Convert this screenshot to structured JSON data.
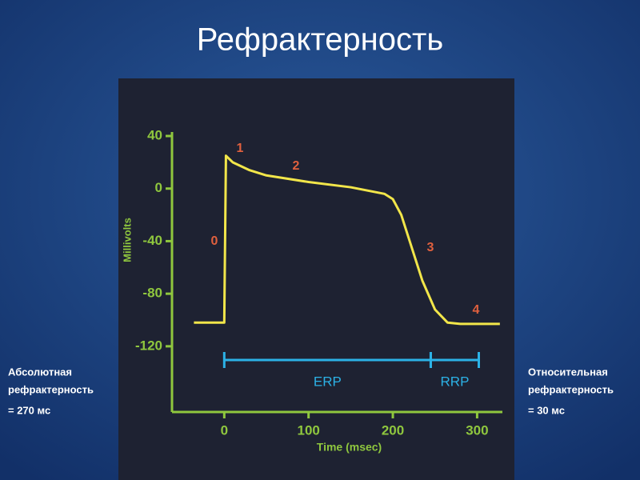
{
  "slide_title": "Рефрактерность",
  "left_note": [
    "Абсолютная",
    "рефрактерность",
    "= 270 мс"
  ],
  "right_note": [
    "Относительная",
    "рефрактерность",
    "= 30 мс"
  ],
  "chart_data": {
    "type": "line",
    "x_label": "Time (msec)",
    "y_label": "Millivolts",
    "x": [
      -36,
      0,
      2,
      10,
      30,
      50,
      100,
      150,
      190,
      200,
      210,
      220,
      235,
      250,
      265,
      280,
      327
    ],
    "series": [
      {
        "color": "#f2e64a",
        "values": [
          -102,
          -102,
          25,
          20,
          14,
          10,
          5,
          1,
          -4,
          -8,
          -20,
          -40,
          -70,
          -92,
          -102,
          -103,
          -103
        ]
      }
    ],
    "xlim": [
      -62,
      330
    ],
    "ylim": [
      -170,
      40
    ],
    "xticks": [
      0,
      100,
      200,
      300
    ],
    "yticks": [
      40,
      0,
      -40,
      -80,
      -120
    ],
    "axis_color": "#8fc73e",
    "annotations": [
      "0",
      "1",
      "2",
      "3",
      "4"
    ],
    "annotation_color": "#e0603e",
    "intervals": [
      {
        "label": "ERP",
        "start": 0,
        "end": 245
      },
      {
        "label": "RRP",
        "start": 245,
        "end": 302
      }
    ],
    "interval_color": "#2cb2e6"
  }
}
